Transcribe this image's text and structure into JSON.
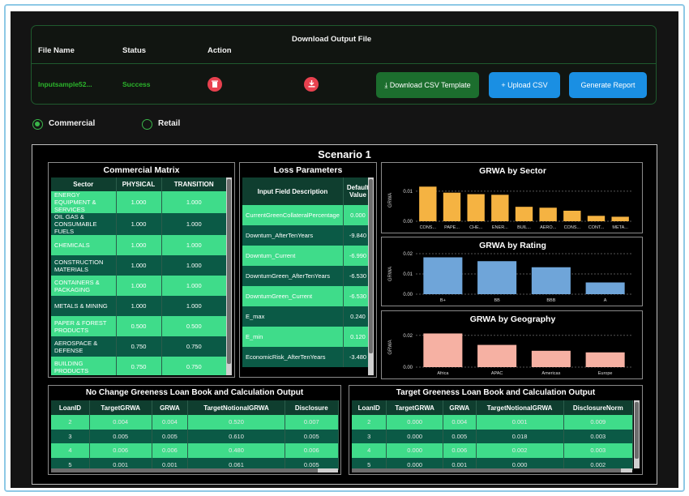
{
  "upload": {
    "headers": {
      "file_name": "File Name",
      "status": "Status",
      "action": "Action",
      "download": "Download Output File"
    },
    "row": {
      "file_name": "Inputsample52...",
      "status": "Success"
    },
    "buttons": {
      "download_template": "Download CSV Template",
      "upload_csv": "Upload CSV",
      "generate": "Generate Report"
    },
    "icons": {
      "delete": "trash-icon",
      "download": "download-icon"
    }
  },
  "portfolio": {
    "options": [
      "Commercial",
      "Retail"
    ],
    "selected": "Commercial"
  },
  "scenario": {
    "title": "Scenario 1"
  },
  "commercial_matrix": {
    "title": "Commercial Matrix",
    "columns": [
      "Sector",
      "PHYSICAL",
      "TRANSITION"
    ],
    "rows": [
      [
        "ENERGY EQUIPMENT & SERVICES",
        "1.000",
        "1.000"
      ],
      [
        "OIL GAS & CONSUMABLE FUELS",
        "1.000",
        "1.000"
      ],
      [
        "CHEMICALS",
        "1.000",
        "1.000"
      ],
      [
        "CONSTRUCTION MATERIALS",
        "1.000",
        "1.000"
      ],
      [
        "CONTAINERS & PACKAGING",
        "1.000",
        "1.000"
      ],
      [
        "METALS & MINING",
        "1.000",
        "1.000"
      ],
      [
        "PAPER & FOREST PRODUCTS",
        "0.500",
        "0.500"
      ],
      [
        "AEROSPACE & DEFENSE",
        "0.750",
        "0.750"
      ],
      [
        "BUILDING PRODUCTS",
        "0.750",
        "0.750"
      ]
    ]
  },
  "loss_parameters": {
    "title": "Loss Parameters",
    "columns": [
      "Input Field Description",
      "Default Value"
    ],
    "rows": [
      [
        "CurrentGreenCollateralPercentage",
        "0.000"
      ],
      [
        "Downturn_AfterTenYears",
        "-9.840"
      ],
      [
        "Downturn_Current",
        "-6.990"
      ],
      [
        "DownturnGreen_AfterTenYears",
        "-6.530"
      ],
      [
        "DownturnGreen_Current",
        "-6.530"
      ],
      [
        "E_max",
        "0.240"
      ],
      [
        "E_min",
        "0.120"
      ],
      [
        "EconomicRisk_AfterTenYears",
        "-3.480"
      ]
    ]
  },
  "chart_data": [
    {
      "type": "bar",
      "title": "GRWA by Sector",
      "ylabel": "GRWA",
      "color": "#f5b342",
      "categories": [
        "CONS...",
        "PAPE...",
        "CHE...",
        "ENER...",
        "BUIL...",
        "AERO...",
        "CONS...",
        "CONT...",
        "META..."
      ],
      "values": [
        0.0115,
        0.0095,
        0.009,
        0.0088,
        0.0048,
        0.0045,
        0.0035,
        0.0018,
        0.0015
      ],
      "ylim": [
        0,
        0.014
      ],
      "yticks": [
        "0.00",
        "0.01"
      ]
    },
    {
      "type": "bar",
      "title": "GRWA by Rating",
      "ylabel": "GRWA",
      "color": "#6fa5d9",
      "categories": [
        "B+",
        "BB",
        "BBB",
        "A"
      ],
      "values": [
        0.0182,
        0.0163,
        0.0133,
        0.0058
      ],
      "ylim": [
        0,
        0.02
      ],
      "yticks": [
        "0.00",
        "0.01",
        "0.02"
      ]
    },
    {
      "type": "bar",
      "title": "GRWA by Geography",
      "ylabel": "GRWA",
      "color": "#f6b1a3",
      "categories": [
        "Africa",
        "APAC",
        "Americas",
        "Europe"
      ],
      "values": [
        0.0212,
        0.014,
        0.0103,
        0.0093
      ],
      "ylim": [
        0,
        0.025
      ],
      "yticks": [
        "0.00",
        "0.02"
      ]
    }
  ],
  "no_change": {
    "title": "No Change Greeness Loan Book and Calculation Output",
    "columns": [
      "LoanID",
      "TargetGRWA",
      "GRWA",
      "TargetNotionalGRWA",
      "Disclosure"
    ],
    "rows": [
      [
        "2",
        "0.004",
        "0.004",
        "0.520",
        "0.007"
      ],
      [
        "3",
        "0.005",
        "0.005",
        "0.610",
        "0.005"
      ],
      [
        "4",
        "0.006",
        "0.006",
        "0.480",
        "0.006"
      ],
      [
        "5",
        "0.001",
        "0.001",
        "0.061",
        "0.005"
      ]
    ]
  },
  "target": {
    "title": "Target Greeness Loan Book and Calculation Output",
    "columns": [
      "LoanID",
      "TargetGRWA",
      "GRWA",
      "TargetNotionalGRWA",
      "DisclosureNorm"
    ],
    "rows": [
      [
        "2",
        "0.000",
        "0.004",
        "0.001",
        "0.009"
      ],
      [
        "3",
        "0.000",
        "0.005",
        "0.018",
        "0.003"
      ],
      [
        "4",
        "0.000",
        "0.006",
        "0.002",
        "0.003"
      ],
      [
        "5",
        "0.000",
        "0.001",
        "0.000",
        "0.002"
      ]
    ]
  },
  "colors": {
    "bg": "#141414",
    "accent_green": "#2bb52b",
    "row_light": "#3fdc8a",
    "row_dark": "#0b5a46",
    "header": "#0f3e2f",
    "blue_btn": "#1a8fe3",
    "dark_green_btn": "#1c6e2e",
    "delete_red": "#e8414f"
  }
}
